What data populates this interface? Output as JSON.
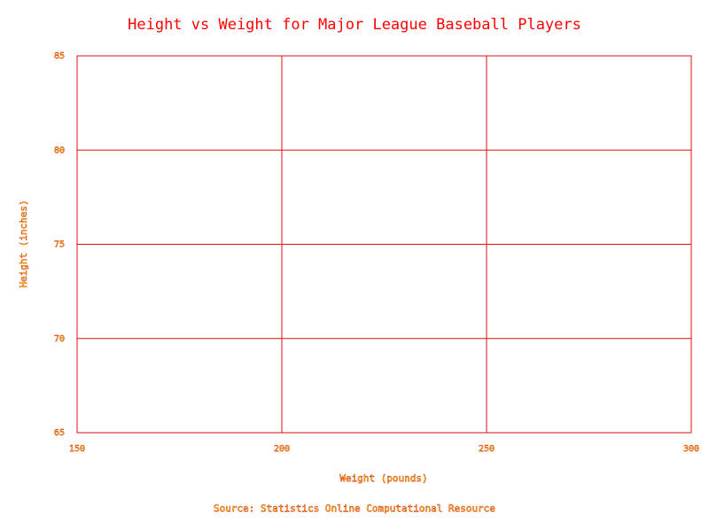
{
  "chart_data": {
    "type": "scatter",
    "title": "Height vs Weight for Major League Baseball Players",
    "xlabel": "Weight (pounds)",
    "ylabel": "Height (inches)",
    "source": "Source: Statistics Online Computational Resource",
    "xlim": [
      150,
      300
    ],
    "ylim": [
      65,
      85
    ],
    "x_ticks": [
      "150",
      "200",
      "250",
      "300"
    ],
    "y_ticks": [
      "65",
      "70",
      "75",
      "80",
      "85"
    ],
    "x_tick_values": [
      150,
      200,
      250,
      300
    ],
    "y_tick_values": [
      65,
      70,
      75,
      80,
      85
    ],
    "grid": true,
    "points": []
  },
  "colors": {
    "title": "#ff0000",
    "grid": "#dd1111",
    "tick_fill": "#ffff00",
    "tick_stroke": "#cc0000"
  }
}
